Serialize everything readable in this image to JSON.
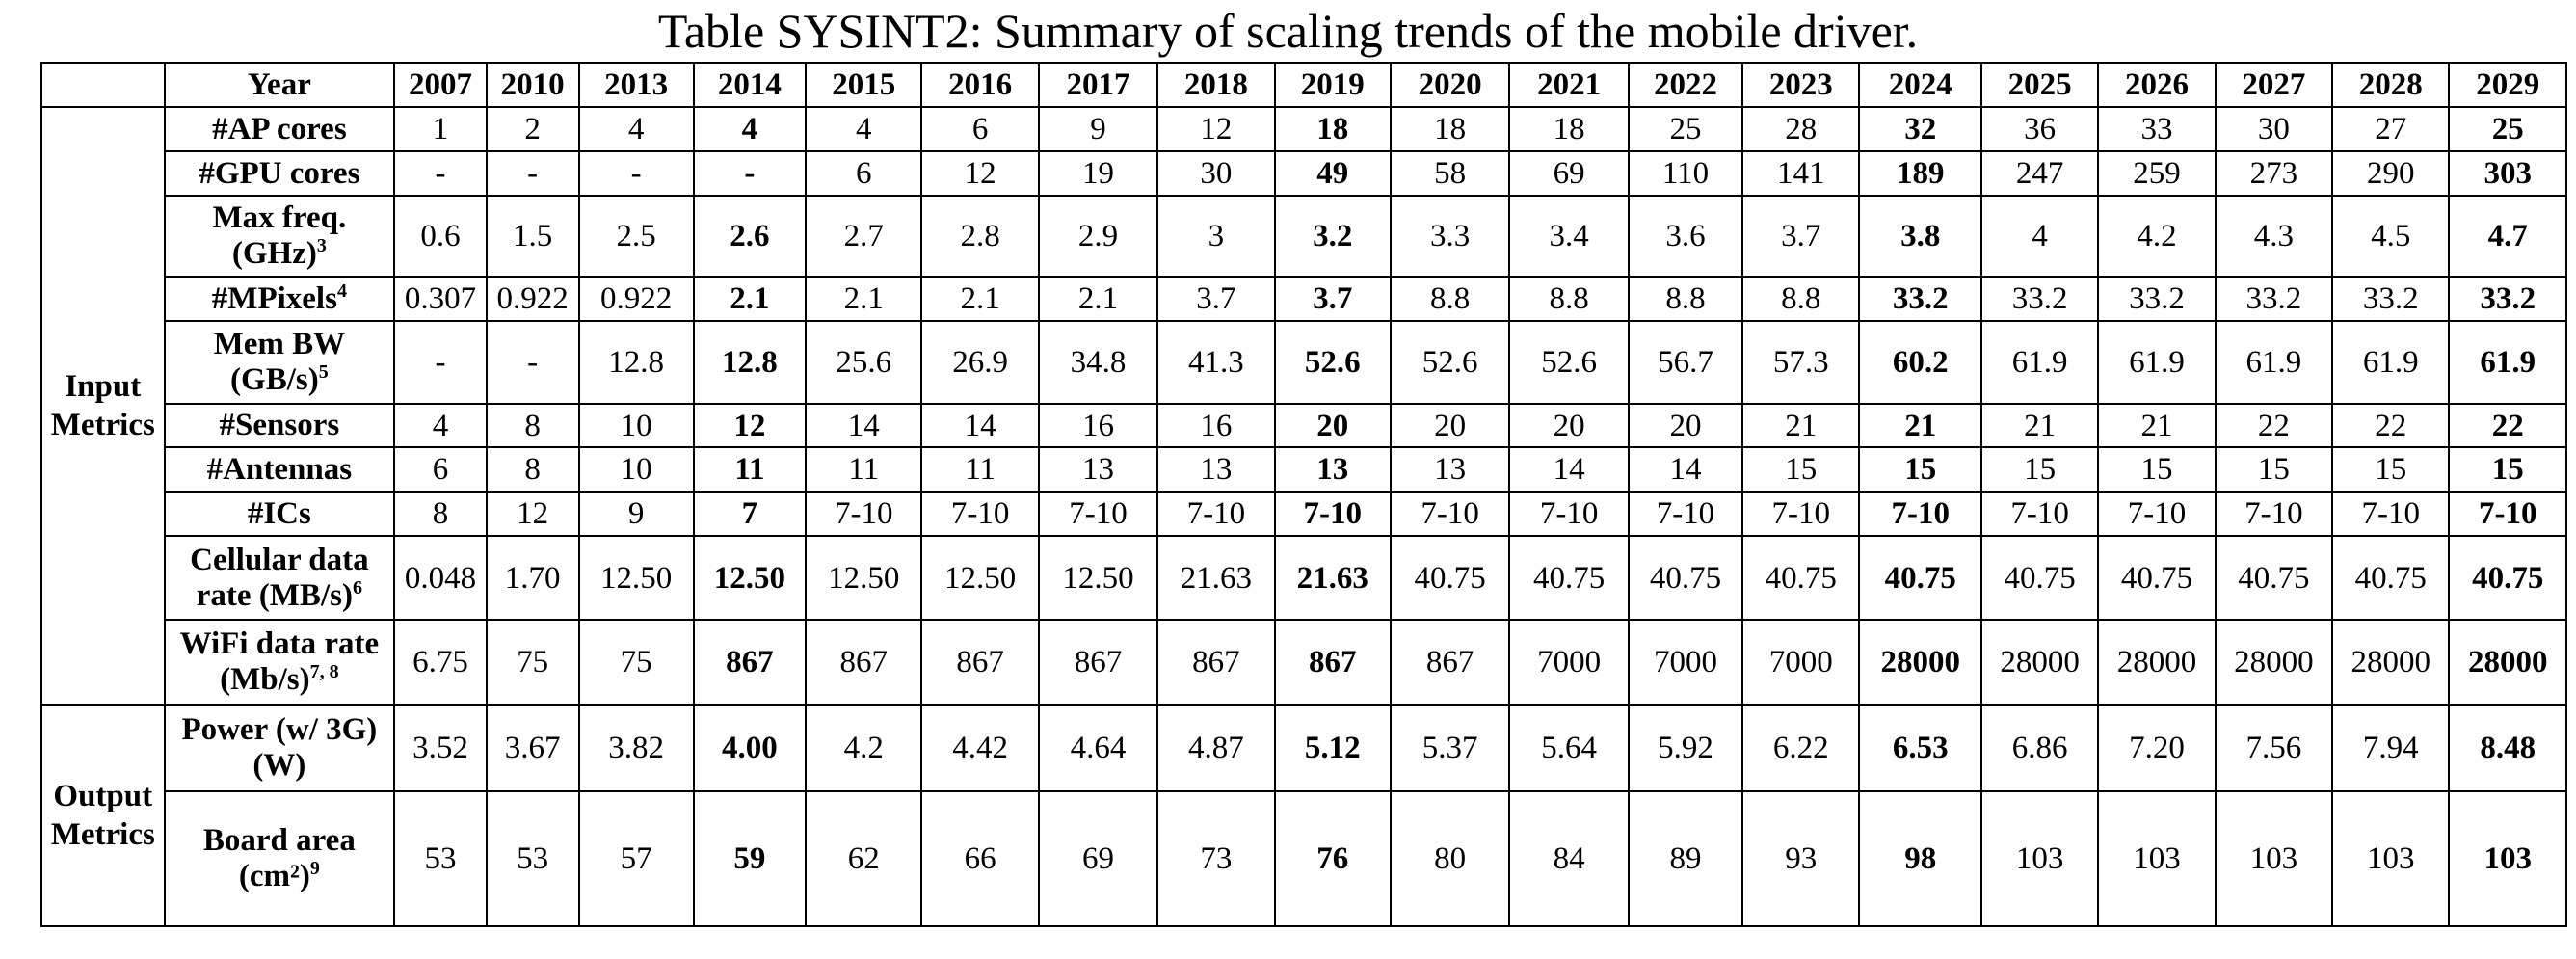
{
  "title": "Table SYSINT2: Summary of scaling trends of the mobile driver.",
  "header": {
    "label": "Year",
    "years": [
      "2007",
      "2010",
      "2013",
      "2014",
      "2015",
      "2016",
      "2017",
      "2018",
      "2019",
      "2020",
      "2021",
      "2022",
      "2023",
      "2024",
      "2025",
      "2026",
      "2027",
      "2028",
      "2029"
    ]
  },
  "bold_columns": [
    3,
    8,
    13,
    18
  ],
  "groups": [
    {
      "label": "Input Metrics",
      "span": 10
    },
    {
      "label": "Output Metrics",
      "span": 2
    }
  ],
  "rows": [
    {
      "label": "#AP cores",
      "height": 46,
      "values": [
        "1",
        "2",
        "4",
        "4",
        "4",
        "6",
        "9",
        "12",
        "18",
        "18",
        "18",
        "25",
        "28",
        "32",
        "36",
        "33",
        "30",
        "27",
        "25"
      ]
    },
    {
      "label": "#GPU cores",
      "height": 46,
      "values": [
        "-",
        "-",
        "-",
        "-",
        "6",
        "12",
        "19",
        "30",
        "49",
        "58",
        "69",
        "110",
        "141",
        "189",
        "247",
        "259",
        "273",
        "290",
        "303"
      ]
    },
    {
      "label": "Max freq. (GHz)",
      "sup": "3",
      "height": 84,
      "values": [
        "0.6",
        "1.5",
        "2.5",
        "2.6",
        "2.7",
        "2.8",
        "2.9",
        "3",
        "3.2",
        "3.3",
        "3.4",
        "3.6",
        "3.7",
        "3.8",
        "4",
        "4.2",
        "4.3",
        "4.5",
        "4.7"
      ]
    },
    {
      "label": "#MPixels",
      "sup": "4",
      "height": 46,
      "values": [
        "0.307",
        "0.922",
        "0.922",
        "2.1",
        "2.1",
        "2.1",
        "2.1",
        "3.7",
        "3.7",
        "8.8",
        "8.8",
        "8.8",
        "8.8",
        "33.2",
        "33.2",
        "33.2",
        "33.2",
        "33.2",
        "33.2"
      ]
    },
    {
      "label": "Mem BW (GB/s)",
      "sup": "5",
      "height": 86,
      "values": [
        "-",
        "-",
        "12.8",
        "12.8",
        "25.6",
        "26.9",
        "34.8",
        "41.3",
        "52.6",
        "52.6",
        "52.6",
        "56.7",
        "57.3",
        "60.2",
        "61.9",
        "61.9",
        "61.9",
        "61.9",
        "61.9"
      ]
    },
    {
      "label": "#Sensors",
      "height": 45,
      "values": [
        "4",
        "8",
        "10",
        "12",
        "14",
        "14",
        "16",
        "16",
        "20",
        "20",
        "20",
        "20",
        "21",
        "21",
        "21",
        "21",
        "22",
        "22",
        "22"
      ]
    },
    {
      "label": "#Antennas",
      "height": 46,
      "values": [
        "6",
        "8",
        "10",
        "11",
        "11",
        "11",
        "13",
        "13",
        "13",
        "13",
        "14",
        "14",
        "15",
        "15",
        "15",
        "15",
        "15",
        "15",
        "15"
      ]
    },
    {
      "label": "#ICs",
      "height": 46,
      "values": [
        "8",
        "12",
        "9",
        "7",
        "7-10",
        "7-10",
        "7-10",
        "7-10",
        "7-10",
        "7-10",
        "7-10",
        "7-10",
        "7-10",
        "7-10",
        "7-10",
        "7-10",
        "7-10",
        "7-10",
        "7-10"
      ]
    },
    {
      "label": "Cellular data rate (MB/s)",
      "sup": "6",
      "height": 87,
      "values": [
        "0.048",
        "1.70",
        "12.50",
        "12.50",
        "12.50",
        "12.50",
        "12.50",
        "21.63",
        "21.63",
        "40.75",
        "40.75",
        "40.75",
        "40.75",
        "40.75",
        "40.75",
        "40.75",
        "40.75",
        "40.75",
        "40.75"
      ]
    },
    {
      "label": "WiFi data rate (Mb/s)",
      "sup": "7, 8",
      "height": 88,
      "values": [
        "6.75",
        "75",
        "75",
        "867",
        "867",
        "867",
        "867",
        "867",
        "867",
        "867",
        "7000",
        "7000",
        "7000",
        "28000",
        "28000",
        "28000",
        "28000",
        "28000",
        "28000"
      ]
    },
    {
      "label": "Power (w/ 3G) (W)",
      "height": 90,
      "values": [
        "3.52",
        "3.67",
        "3.82",
        "4.00",
        "4.2",
        "4.42",
        "4.64",
        "4.87",
        "5.12",
        "5.37",
        "5.64",
        "5.92",
        "6.22",
        "6.53",
        "6.86",
        "7.20",
        "7.56",
        "7.94",
        "8.48"
      ]
    },
    {
      "label": "Board area (cm²)",
      "sup": "9",
      "height": 140,
      "values": [
        "53",
        "53",
        "57",
        "59",
        "62",
        "66",
        "69",
        "73",
        "76",
        "80",
        "84",
        "89",
        "93",
        "98",
        "103",
        "103",
        "103",
        "103",
        "103"
      ]
    }
  ]
}
